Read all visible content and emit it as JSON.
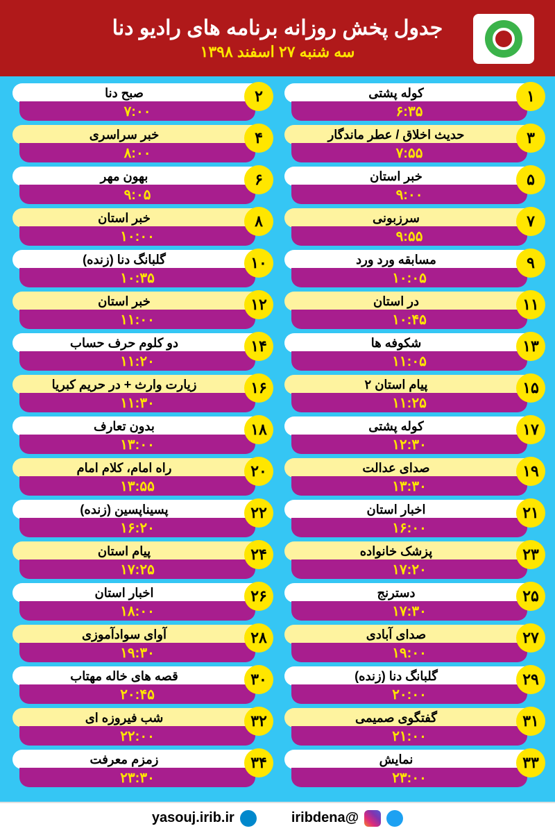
{
  "colors": {
    "header_bg": "#b0191a",
    "body_bg": "#35c6f4",
    "title_bar_a": "#ffffff",
    "title_bar_b": "#fef39f",
    "time_bar_bg": "#a81e8e",
    "time_text": "#ffe600",
    "badge_bg": "#ffe600"
  },
  "header": {
    "title": "جدول پخش روزانه برنامه های رادیو دنا",
    "date": "سه شنبه ۲۷ اسفند ۱۳۹۸"
  },
  "programs": [
    {
      "n": "۱",
      "title": "کوله پشتی",
      "time": "۶:۳۵"
    },
    {
      "n": "۲",
      "title": "صبح دنا",
      "time": "۷:۰۰"
    },
    {
      "n": "۳",
      "title": "حدیث اخلاق / عطر ماندگار",
      "time": "۷:۵۵"
    },
    {
      "n": "۴",
      "title": "خبر سراسری",
      "time": "۸:۰۰"
    },
    {
      "n": "۵",
      "title": "خبر استان",
      "time": "۹:۰۰"
    },
    {
      "n": "۶",
      "title": "بهون مهر",
      "time": "۹:۰۵"
    },
    {
      "n": "۷",
      "title": "سرزبونی",
      "time": "۹:۵۵"
    },
    {
      "n": "۸",
      "title": "خبر استان",
      "time": "۱۰:۰۰"
    },
    {
      "n": "۹",
      "title": "مسابقه ورد ورد",
      "time": "۱۰:۰۵"
    },
    {
      "n": "۱۰",
      "title": "گلبانگ دنا (زنده)",
      "time": "۱۰:۳۵"
    },
    {
      "n": "۱۱",
      "title": "در استان",
      "time": "۱۰:۴۵"
    },
    {
      "n": "۱۲",
      "title": "خبر استان",
      "time": "۱۱:۰۰"
    },
    {
      "n": "۱۳",
      "title": "شکوفه ها",
      "time": "۱۱:۰۵"
    },
    {
      "n": "۱۴",
      "title": "دو کلوم حرف حساب",
      "time": "۱۱:۲۰"
    },
    {
      "n": "۱۵",
      "title": "پیام استان ۲",
      "time": "۱۱:۲۵"
    },
    {
      "n": "۱۶",
      "title": "زیارت وارث + در حریم کبریا",
      "time": "۱۱:۳۰"
    },
    {
      "n": "۱۷",
      "title": "کوله پشتی",
      "time": "۱۲:۳۰"
    },
    {
      "n": "۱۸",
      "title": "بدون تعارف",
      "time": "۱۳:۰۰"
    },
    {
      "n": "۱۹",
      "title": "صدای عدالت",
      "time": "۱۳:۳۰"
    },
    {
      "n": "۲۰",
      "title": "راه امام، کلام امام",
      "time": "۱۳:۵۵"
    },
    {
      "n": "۲۱",
      "title": "اخبار استان",
      "time": "۱۶:۰۰"
    },
    {
      "n": "۲۲",
      "title": "پسیناپسین (زنده)",
      "time": "۱۶:۲۰"
    },
    {
      "n": "۲۳",
      "title": "پزشک خانواده",
      "time": "۱۷:۲۰"
    },
    {
      "n": "۲۴",
      "title": "پیام استان",
      "time": "۱۷:۲۵"
    },
    {
      "n": "۲۵",
      "title": "دسترنج",
      "time": "۱۷:۳۰"
    },
    {
      "n": "۲۶",
      "title": "اخبار استان",
      "time": "۱۸:۰۰"
    },
    {
      "n": "۲۷",
      "title": "صدای آبادی",
      "time": "۱۹:۰۰"
    },
    {
      "n": "۲۸",
      "title": "آوای سوادآموزی",
      "time": "۱۹:۳۰"
    },
    {
      "n": "۲۹",
      "title": "گلبانگ دنا (زنده)",
      "time": "۲۰:۰۰"
    },
    {
      "n": "۳۰",
      "title": "قصه های خاله مهتاب",
      "time": "۲۰:۴۵"
    },
    {
      "n": "۳۱",
      "title": "گفتگوی صمیمی",
      "time": "۲۱:۰۰"
    },
    {
      "n": "۳۲",
      "title": "شب فیروزه ای",
      "time": "۲۲:۰۰"
    },
    {
      "n": "۳۳",
      "title": "نمایش",
      "time": "۲۳:۰۰"
    },
    {
      "n": "۳۴",
      "title": "زمزم معرفت",
      "time": "۲۳:۳۰"
    }
  ],
  "footer": {
    "handle": "@iribdena",
    "url": "yasouj.irib.ir"
  }
}
